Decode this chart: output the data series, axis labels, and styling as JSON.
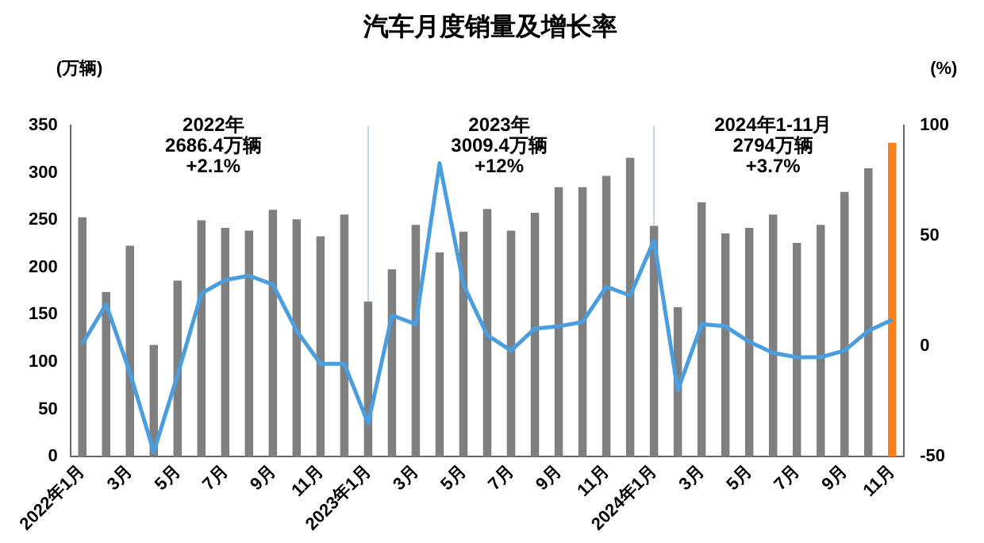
{
  "chart_data": {
    "type": "bar",
    "title": "汽车月度销量及增长率",
    "ylabel": "(万辆)",
    "y2label": "(%)",
    "categories": [
      "2022年1月",
      null,
      "3月",
      null,
      "5月",
      null,
      "7月",
      null,
      "9月",
      null,
      "11月",
      null,
      "2023年1月",
      null,
      "3月",
      null,
      "5月",
      null,
      "7月",
      null,
      "9月",
      null,
      "11月",
      null,
      "2024年1月",
      null,
      "3月",
      null,
      "5月",
      null,
      "7月",
      null,
      "9月",
      null,
      "11月"
    ],
    "series": [
      {
        "colors": [
          "#7f7f7f",
          "#7f7f7f",
          "#7f7f7f",
          "#7f7f7f",
          "#7f7f7f",
          "#7f7f7f",
          "#7f7f7f",
          "#7f7f7f",
          "#7f7f7f",
          "#7f7f7f",
          "#7f7f7f",
          "#7f7f7f",
          "#7f7f7f",
          "#7f7f7f",
          "#7f7f7f",
          "#7f7f7f",
          "#7f7f7f",
          "#7f7f7f",
          "#7f7f7f",
          "#7f7f7f",
          "#7f7f7f",
          "#7f7f7f",
          "#7f7f7f",
          "#7f7f7f",
          "#7f7f7f",
          "#7f7f7f",
          "#7f7f7f",
          "#7f7f7f",
          "#7f7f7f",
          "#7f7f7f",
          "#7f7f7f",
          "#7f7f7f",
          "#7f7f7f",
          "#7f7f7f",
          "#f58220"
        ],
        "values": [
          253,
          174,
          223,
          118,
          186,
          250,
          242,
          239,
          261,
          251,
          233,
          256,
          164,
          198,
          245,
          216,
          238,
          262,
          239,
          258,
          285,
          285,
          297,
          316,
          244,
          158,
          269,
          236,
          242,
          256,
          226,
          245,
          280,
          305,
          332
        ]
      },
      {
        "type": "line",
        "axis": "y2",
        "color": "#4a9ee0",
        "values": [
          1,
          19,
          -12,
          -48,
          -13,
          24,
          30,
          32,
          28,
          7,
          -8,
          -8,
          -35,
          14,
          10,
          83,
          28,
          5,
          -2,
          8,
          9,
          11,
          27,
          23,
          48,
          -20,
          10,
          9,
          2,
          -3,
          -5,
          -5,
          -2,
          7,
          12
        ]
      }
    ],
    "ylim": [
      0,
      350
    ],
    "yticks": [
      0,
      50,
      100,
      150,
      200,
      250,
      300,
      350
    ],
    "y2lim": [
      -50,
      100
    ],
    "y2ticks": [
      -50,
      0,
      50,
      100
    ],
    "ref_lines": [
      {
        "axis": "x",
        "value": "2023年1月",
        "color": "#bdd7ee"
      },
      {
        "axis": "x",
        "value": "2024年1月",
        "color": "#bdd7ee"
      }
    ],
    "annotations": [
      "2022年\n2686.4万辆\n+2.1%",
      "2023年\n3009.4万辆\n+12%",
      "2024年1-11月\n2794万辆\n+3.7%"
    ],
    "grid": false,
    "legend": false,
    "marker": "none",
    "line_style": "solid"
  }
}
